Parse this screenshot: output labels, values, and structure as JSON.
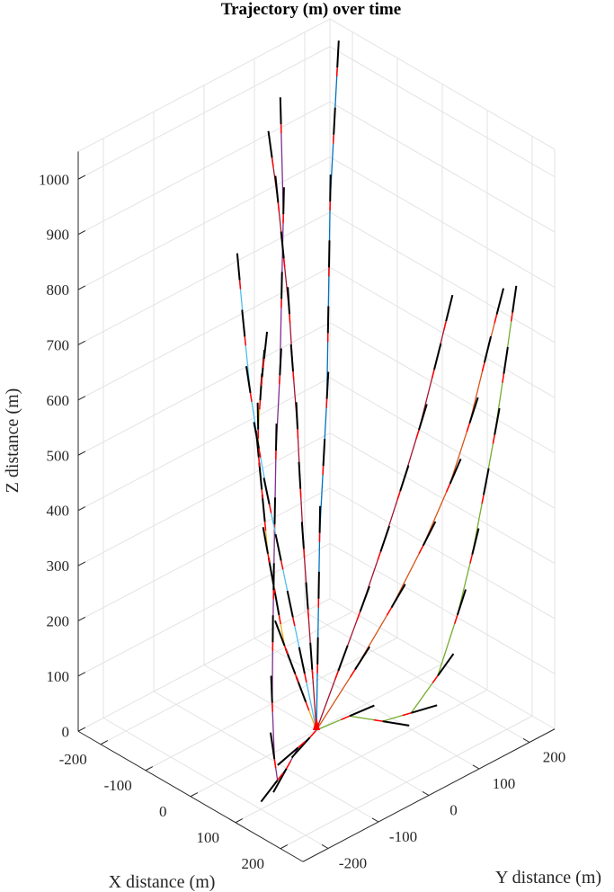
{
  "chart_data": {
    "type": "line3d",
    "title": "Trajectory (m) over time",
    "xlabel": "X distance (m)",
    "ylabel": "Y distance (m)",
    "zlabel": "Z distance (m)",
    "xlim": [
      -250,
      250
    ],
    "ylim": [
      -250,
      250
    ],
    "zlim": [
      0,
      1050
    ],
    "x_ticks": [
      -200,
      -100,
      0,
      100,
      200
    ],
    "y_ticks": [
      -200,
      -100,
      0,
      100,
      200
    ],
    "z_ticks": [
      0,
      100,
      200,
      300,
      400,
      500,
      600,
      700,
      800,
      900,
      1000
    ],
    "grid": true,
    "series": [
      {
        "color": "#EDB120",
        "points": [
          [
            0,
            0,
            0
          ],
          [
            10,
            -30,
            70
          ],
          [
            20,
            -60,
            140
          ],
          [
            30,
            -90,
            210
          ],
          [
            40,
            -110,
            280
          ],
          [
            50,
            -130,
            350
          ],
          [
            60,
            -150,
            420
          ],
          [
            70,
            -165,
            490
          ],
          [
            80,
            -180,
            560
          ],
          [
            90,
            -195,
            630
          ],
          [
            100,
            -205,
            690
          ],
          [
            110,
            -210,
            750
          ],
          [
            120,
            -215,
            800
          ],
          [
            130,
            -220,
            840
          ]
        ]
      },
      {
        "color": "#7E2F8E",
        "points": [
          [
            0,
            0,
            0
          ],
          [
            30,
            -40,
            20
          ],
          [
            60,
            -90,
            40
          ],
          [
            90,
            -140,
            40
          ],
          [
            115,
            -180,
            50
          ],
          [
            125,
            -195,
            100
          ],
          [
            120,
            -195,
            200
          ],
          [
            110,
            -185,
            300
          ],
          [
            95,
            -170,
            380
          ],
          [
            75,
            -150,
            480
          ],
          [
            50,
            -125,
            590
          ],
          [
            25,
            -95,
            700
          ],
          [
            -5,
            -65,
            810
          ],
          [
            -40,
            -30,
            930
          ],
          [
            -90,
            10,
            1050
          ]
        ]
      },
      {
        "color": "#4DBEEE",
        "points": [
          [
            0,
            0,
            0
          ],
          [
            -15,
            -10,
            100
          ],
          [
            -30,
            -20,
            200
          ],
          [
            -45,
            -30,
            300
          ],
          [
            -60,
            -40,
            400
          ],
          [
            -72,
            -50,
            500
          ],
          [
            -82,
            -58,
            600
          ],
          [
            -90,
            -62,
            700
          ],
          [
            -98,
            -65,
            800
          ]
        ]
      },
      {
        "color": "#A2142F",
        "points": [
          [
            0,
            0,
            0
          ],
          [
            -15,
            5,
            100
          ],
          [
            -30,
            10,
            200
          ],
          [
            -45,
            15,
            300
          ],
          [
            -58,
            20,
            400
          ],
          [
            -70,
            25,
            500
          ],
          [
            -80,
            25,
            600
          ],
          [
            -88,
            25,
            700
          ],
          [
            -95,
            20,
            800
          ],
          [
            -102,
            15,
            900
          ],
          [
            -110,
            10,
            980
          ]
        ]
      },
      {
        "color": "#0072BD",
        "points": [
          [
            0,
            0,
            0
          ],
          [
            -20,
            20,
            100
          ],
          [
            -40,
            40,
            200
          ],
          [
            -60,
            60,
            300
          ],
          [
            -80,
            85,
            400
          ],
          [
            -100,
            110,
            500
          ],
          [
            -120,
            130,
            600
          ],
          [
            -140,
            150,
            700
          ],
          [
            -160,
            170,
            800
          ],
          [
            -180,
            195,
            900
          ],
          [
            -200,
            220,
            1000
          ]
        ]
      },
      {
        "color": "#A2142F",
        "points": [
          [
            0,
            0,
            0
          ],
          [
            15,
            30,
            100
          ],
          [
            30,
            60,
            200
          ],
          [
            42,
            90,
            300
          ],
          [
            52,
            120,
            400
          ],
          [
            60,
            150,
            500
          ],
          [
            66,
            175,
            600
          ],
          [
            70,
            195,
            680
          ]
        ]
      },
      {
        "color": "#D95319",
        "points": [
          [
            0,
            0,
            0
          ],
          [
            30,
            50,
            100
          ],
          [
            55,
            100,
            200
          ],
          [
            75,
            145,
            300
          ],
          [
            90,
            185,
            400
          ],
          [
            100,
            215,
            500
          ],
          [
            105,
            240,
            600
          ],
          [
            110,
            260,
            680
          ]
        ]
      },
      {
        "color": "#77AC30",
        "points": [
          [
            0,
            0,
            0
          ],
          [
            40,
            30,
            30
          ],
          [
            80,
            60,
            25
          ],
          [
            110,
            90,
            40
          ],
          [
            130,
            125,
            100
          ],
          [
            140,
            155,
            200
          ],
          [
            145,
            180,
            300
          ],
          [
            148,
            200,
            400
          ],
          [
            150,
            220,
            500
          ],
          [
            148,
            240,
            600
          ],
          [
            145,
            260,
            700
          ]
        ]
      }
    ]
  }
}
